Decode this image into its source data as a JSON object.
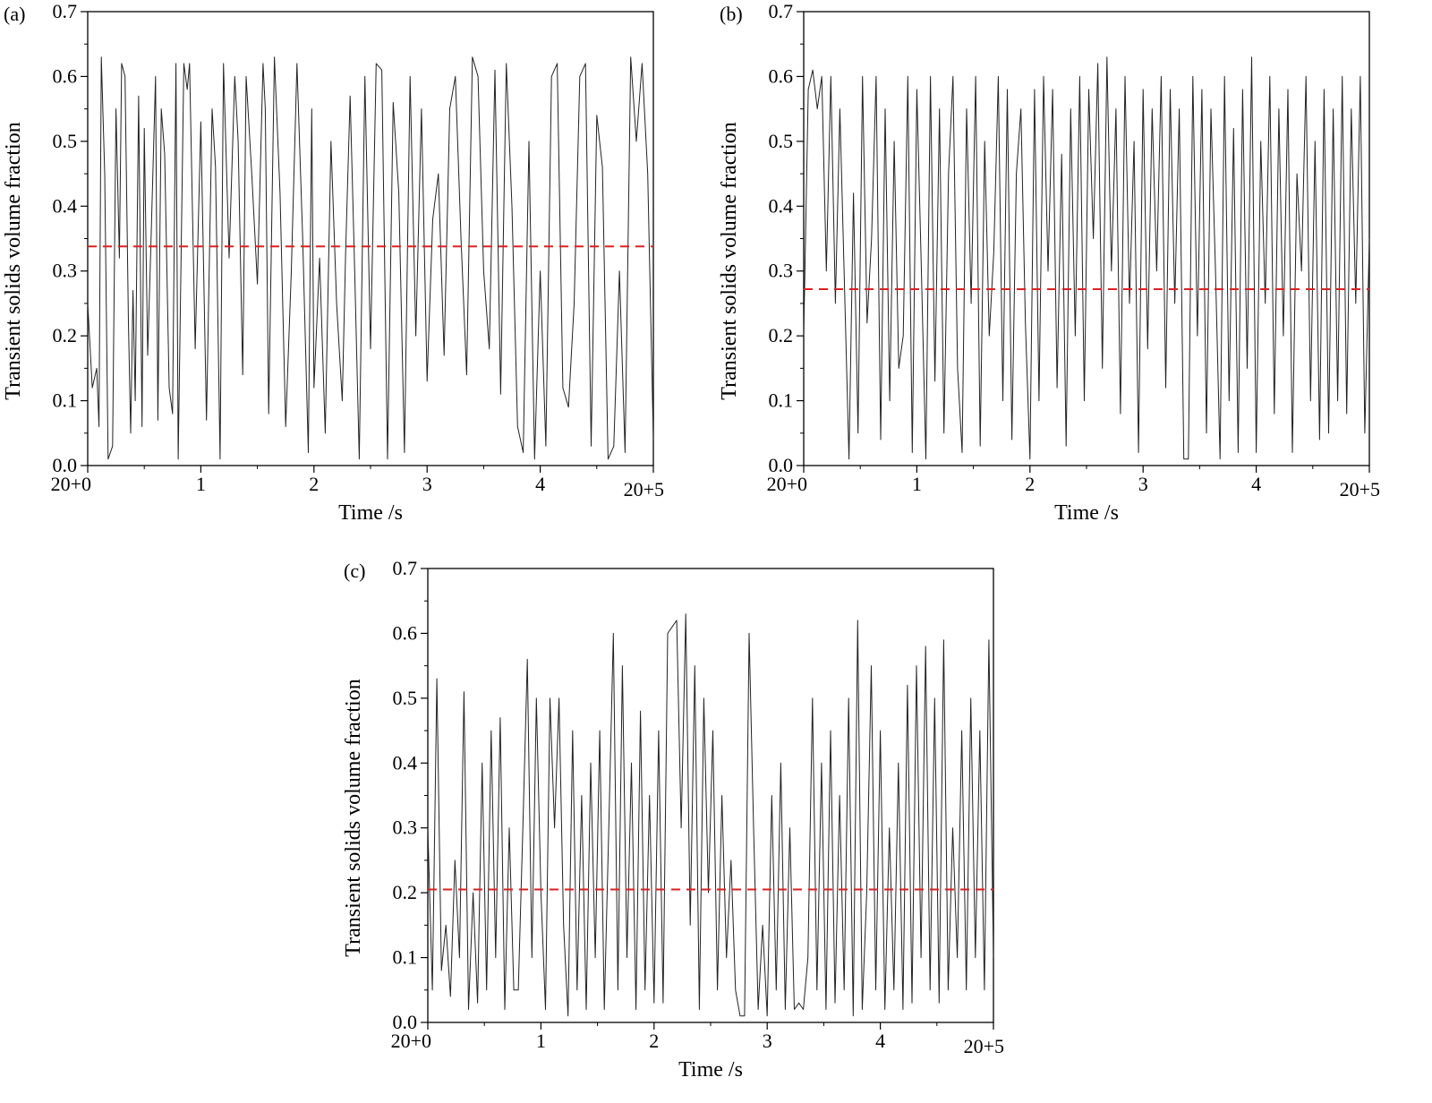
{
  "figure": {
    "panels": [
      "(a)",
      "(b)",
      "(c)"
    ]
  },
  "colors": {
    "series": "#222222",
    "mean_line": "#e02020",
    "axis": "#000000"
  },
  "chart_data": [
    {
      "type": "line",
      "panel_label": "(a)",
      "xlabel": "Time /s",
      "ylabel": "Transient solids volume fraction",
      "xlim": [
        0,
        5
      ],
      "ylim": [
        0,
        0.7
      ],
      "x_ticks": [
        "20+0",
        "1",
        "2",
        "3",
        "4",
        "20+5"
      ],
      "y_ticks": [
        "0.0",
        "0.1",
        "0.2",
        "0.3",
        "0.4",
        "0.5",
        "0.6",
        "0.7"
      ],
      "mean_line": 0.338,
      "grid": false,
      "series": [
        {
          "x": [
            0,
            0.04,
            0.08,
            0.1,
            0.12,
            0.15,
            0.18,
            0.22,
            0.25,
            0.28,
            0.3,
            0.33,
            0.36,
            0.38,
            0.4,
            0.42,
            0.45,
            0.48,
            0.5,
            0.53,
            0.56,
            0.6,
            0.62,
            0.65,
            0.68,
            0.72,
            0.75,
            0.78,
            0.8,
            0.82,
            0.85,
            0.88,
            0.9,
            0.95,
            1.0,
            1.05,
            1.1,
            1.13,
            1.17,
            1.2,
            1.25,
            1.3,
            1.33,
            1.37,
            1.4,
            1.45,
            1.5,
            1.55,
            1.57,
            1.6,
            1.65,
            1.7,
            1.75,
            1.8,
            1.85,
            1.9,
            1.95,
            1.98,
            2.0,
            2.05,
            2.1,
            2.15,
            2.2,
            2.25,
            2.28,
            2.32,
            2.36,
            2.4,
            2.45,
            2.5,
            2.55,
            2.6,
            2.65,
            2.7,
            2.75,
            2.8,
            2.85,
            2.9,
            2.95,
            3.0,
            3.05,
            3.1,
            3.15,
            3.2,
            3.25,
            3.3,
            3.35,
            3.4,
            3.45,
            3.5,
            3.55,
            3.6,
            3.65,
            3.7,
            3.75,
            3.8,
            3.85,
            3.9,
            3.95,
            4.0,
            4.05,
            4.1,
            4.15,
            4.2,
            4.25,
            4.3,
            4.35,
            4.4,
            4.45,
            4.5,
            4.55,
            4.6,
            4.65,
            4.7,
            4.75,
            4.8,
            4.85,
            4.9,
            4.95,
            5.0
          ],
          "y": [
            0.25,
            0.12,
            0.15,
            0.06,
            0.63,
            0.45,
            0.01,
            0.03,
            0.55,
            0.32,
            0.62,
            0.6,
            0.22,
            0.05,
            0.27,
            0.1,
            0.57,
            0.06,
            0.52,
            0.17,
            0.35,
            0.6,
            0.07,
            0.55,
            0.48,
            0.12,
            0.08,
            0.62,
            0.01,
            0.25,
            0.62,
            0.58,
            0.62,
            0.18,
            0.53,
            0.07,
            0.55,
            0.46,
            0.01,
            0.62,
            0.32,
            0.6,
            0.5,
            0.14,
            0.6,
            0.45,
            0.28,
            0.62,
            0.55,
            0.08,
            0.63,
            0.42,
            0.06,
            0.3,
            0.62,
            0.35,
            0.02,
            0.55,
            0.12,
            0.32,
            0.05,
            0.5,
            0.25,
            0.1,
            0.33,
            0.57,
            0.3,
            0.01,
            0.6,
            0.18,
            0.62,
            0.61,
            0.01,
            0.56,
            0.42,
            0.02,
            0.6,
            0.2,
            0.55,
            0.13,
            0.38,
            0.45,
            0.17,
            0.55,
            0.6,
            0.35,
            0.14,
            0.63,
            0.6,
            0.3,
            0.18,
            0.61,
            0.11,
            0.62,
            0.4,
            0.06,
            0.02,
            0.5,
            0.01,
            0.3,
            0.03,
            0.6,
            0.62,
            0.12,
            0.09,
            0.25,
            0.6,
            0.62,
            0.03,
            0.54,
            0.46,
            0.01,
            0.03,
            0.3,
            0.02,
            0.63,
            0.5,
            0.62,
            0.45,
            0.04
          ]
        }
      ]
    },
    {
      "type": "line",
      "panel_label": "(b)",
      "xlabel": "Time /s",
      "ylabel": "Transient solids volume fraction",
      "xlim": [
        0,
        5
      ],
      "ylim": [
        0,
        0.7
      ],
      "x_ticks": [
        "20+0",
        "1",
        "2",
        "3",
        "4",
        "20+5"
      ],
      "y_ticks": [
        "0.0",
        "0.1",
        "0.2",
        "0.3",
        "0.4",
        "0.5",
        "0.6",
        "0.7"
      ],
      "mean_line": 0.272,
      "grid": false,
      "series": [
        {
          "x": [
            0,
            0.04,
            0.08,
            0.12,
            0.16,
            0.2,
            0.24,
            0.28,
            0.32,
            0.36,
            0.4,
            0.44,
            0.48,
            0.52,
            0.56,
            0.6,
            0.64,
            0.68,
            0.72,
            0.76,
            0.8,
            0.84,
            0.88,
            0.92,
            0.96,
            1.0,
            1.04,
            1.08,
            1.12,
            1.16,
            1.2,
            1.24,
            1.28,
            1.32,
            1.36,
            1.4,
            1.44,
            1.48,
            1.52,
            1.56,
            1.6,
            1.64,
            1.68,
            1.72,
            1.76,
            1.8,
            1.84,
            1.88,
            1.92,
            1.96,
            2.0,
            2.04,
            2.08,
            2.12,
            2.16,
            2.2,
            2.24,
            2.28,
            2.32,
            2.36,
            2.4,
            2.44,
            2.48,
            2.52,
            2.56,
            2.6,
            2.64,
            2.68,
            2.72,
            2.76,
            2.8,
            2.84,
            2.88,
            2.92,
            2.96,
            3.0,
            3.04,
            3.08,
            3.12,
            3.16,
            3.2,
            3.24,
            3.28,
            3.32,
            3.36,
            3.4,
            3.44,
            3.48,
            3.52,
            3.56,
            3.6,
            3.64,
            3.68,
            3.72,
            3.76,
            3.8,
            3.84,
            3.88,
            3.92,
            3.96,
            4.0,
            4.04,
            4.08,
            4.12,
            4.16,
            4.2,
            4.24,
            4.28,
            4.32,
            4.36,
            4.4,
            4.44,
            4.48,
            4.52,
            4.56,
            4.6,
            4.64,
            4.68,
            4.72,
            4.76,
            4.8,
            4.84,
            4.88,
            4.92,
            4.96,
            5.0
          ],
          "y": [
            0.2,
            0.58,
            0.61,
            0.55,
            0.6,
            0.3,
            0.6,
            0.25,
            0.55,
            0.28,
            0.01,
            0.42,
            0.05,
            0.6,
            0.22,
            0.35,
            0.6,
            0.04,
            0.55,
            0.1,
            0.5,
            0.15,
            0.2,
            0.6,
            0.02,
            0.58,
            0.3,
            0.01,
            0.6,
            0.13,
            0.55,
            0.05,
            0.45,
            0.6,
            0.15,
            0.02,
            0.55,
            0.25,
            0.6,
            0.03,
            0.5,
            0.2,
            0.33,
            0.6,
            0.1,
            0.58,
            0.04,
            0.45,
            0.55,
            0.22,
            0.01,
            0.58,
            0.1,
            0.6,
            0.3,
            0.58,
            0.12,
            0.48,
            0.03,
            0.55,
            0.2,
            0.6,
            0.1,
            0.58,
            0.35,
            0.62,
            0.15,
            0.63,
            0.3,
            0.55,
            0.08,
            0.6,
            0.25,
            0.5,
            0.02,
            0.58,
            0.18,
            0.55,
            0.3,
            0.6,
            0.12,
            0.58,
            0.25,
            0.55,
            0.01,
            0.01,
            0.6,
            0.2,
            0.58,
            0.05,
            0.55,
            0.3,
            0.01,
            0.6,
            0.1,
            0.52,
            0.02,
            0.58,
            0.15,
            0.63,
            0.02,
            0.5,
            0.25,
            0.6,
            0.08,
            0.55,
            0.2,
            0.58,
            0.02,
            0.45,
            0.3,
            0.6,
            0.1,
            0.5,
            0.04,
            0.58,
            0.05,
            0.55,
            0.1,
            0.6,
            0.08,
            0.55,
            0.25,
            0.6,
            0.05,
            0.35
          ]
        }
      ]
    },
    {
      "type": "line",
      "panel_label": "(c)",
      "xlabel": "Time /s",
      "ylabel": "Transient solids volume fraction",
      "xlim": [
        0,
        5
      ],
      "ylim": [
        0,
        0.7
      ],
      "x_ticks": [
        "20+0",
        "1",
        "2",
        "3",
        "4",
        "20+5"
      ],
      "y_ticks": [
        "0.0",
        "0.1",
        "0.2",
        "0.3",
        "0.4",
        "0.5",
        "0.6",
        "0.7"
      ],
      "mean_line": 0.205,
      "grid": false,
      "series": [
        {
          "x": [
            0,
            0.04,
            0.08,
            0.12,
            0.16,
            0.2,
            0.24,
            0.28,
            0.32,
            0.36,
            0.4,
            0.44,
            0.48,
            0.52,
            0.56,
            0.6,
            0.64,
            0.68,
            0.72,
            0.76,
            0.8,
            0.84,
            0.88,
            0.92,
            0.96,
            1.0,
            1.04,
            1.08,
            1.12,
            1.16,
            1.2,
            1.24,
            1.28,
            1.32,
            1.36,
            1.4,
            1.44,
            1.48,
            1.52,
            1.56,
            1.6,
            1.64,
            1.68,
            1.72,
            1.76,
            1.8,
            1.84,
            1.88,
            1.92,
            1.96,
            2.0,
            2.04,
            2.08,
            2.12,
            2.16,
            2.2,
            2.24,
            2.28,
            2.32,
            2.36,
            2.4,
            2.44,
            2.48,
            2.52,
            2.56,
            2.6,
            2.64,
            2.68,
            2.72,
            2.76,
            2.8,
            2.84,
            2.88,
            2.92,
            2.96,
            3.0,
            3.04,
            3.08,
            3.12,
            3.16,
            3.2,
            3.24,
            3.28,
            3.32,
            3.36,
            3.4,
            3.44,
            3.48,
            3.52,
            3.56,
            3.6,
            3.64,
            3.68,
            3.72,
            3.76,
            3.8,
            3.84,
            3.88,
            3.92,
            3.96,
            4.0,
            4.04,
            4.08,
            4.12,
            4.16,
            4.2,
            4.24,
            4.28,
            4.32,
            4.36,
            4.4,
            4.44,
            4.48,
            4.52,
            4.56,
            4.6,
            4.64,
            4.68,
            4.72,
            4.76,
            4.8,
            4.84,
            4.88,
            4.92,
            4.96,
            5.0
          ],
          "y": [
            0.3,
            0.05,
            0.53,
            0.08,
            0.15,
            0.04,
            0.25,
            0.1,
            0.51,
            0.02,
            0.2,
            0.03,
            0.4,
            0.05,
            0.45,
            0.1,
            0.47,
            0.02,
            0.3,
            0.05,
            0.05,
            0.3,
            0.56,
            0.1,
            0.5,
            0.2,
            0.02,
            0.5,
            0.3,
            0.5,
            0.15,
            0.01,
            0.45,
            0.05,
            0.35,
            0.02,
            0.4,
            0.1,
            0.45,
            0.02,
            0.3,
            0.6,
            0.05,
            0.55,
            0.1,
            0.4,
            0.02,
            0.48,
            0.05,
            0.35,
            0.03,
            0.45,
            0.03,
            0.6,
            0.61,
            0.62,
            0.3,
            0.63,
            0.15,
            0.55,
            0.02,
            0.5,
            0.2,
            0.45,
            0.05,
            0.35,
            0.1,
            0.25,
            0.05,
            0.01,
            0.01,
            0.6,
            0.3,
            0.02,
            0.15,
            0.01,
            0.35,
            0.05,
            0.4,
            0.02,
            0.3,
            0.02,
            0.03,
            0.02,
            0.1,
            0.5,
            0.05,
            0.4,
            0.02,
            0.45,
            0.03,
            0.35,
            0.05,
            0.5,
            0.01,
            0.62,
            0.02,
            0.2,
            0.55,
            0.05,
            0.45,
            0.02,
            0.3,
            0.05,
            0.4,
            0.02,
            0.52,
            0.03,
            0.55,
            0.1,
            0.58,
            0.05,
            0.5,
            0.03,
            0.59,
            0.05,
            0.3,
            0.1,
            0.45,
            0.05,
            0.5,
            0.1,
            0.45,
            0.05,
            0.59,
            0.1
          ]
        }
      ]
    }
  ]
}
